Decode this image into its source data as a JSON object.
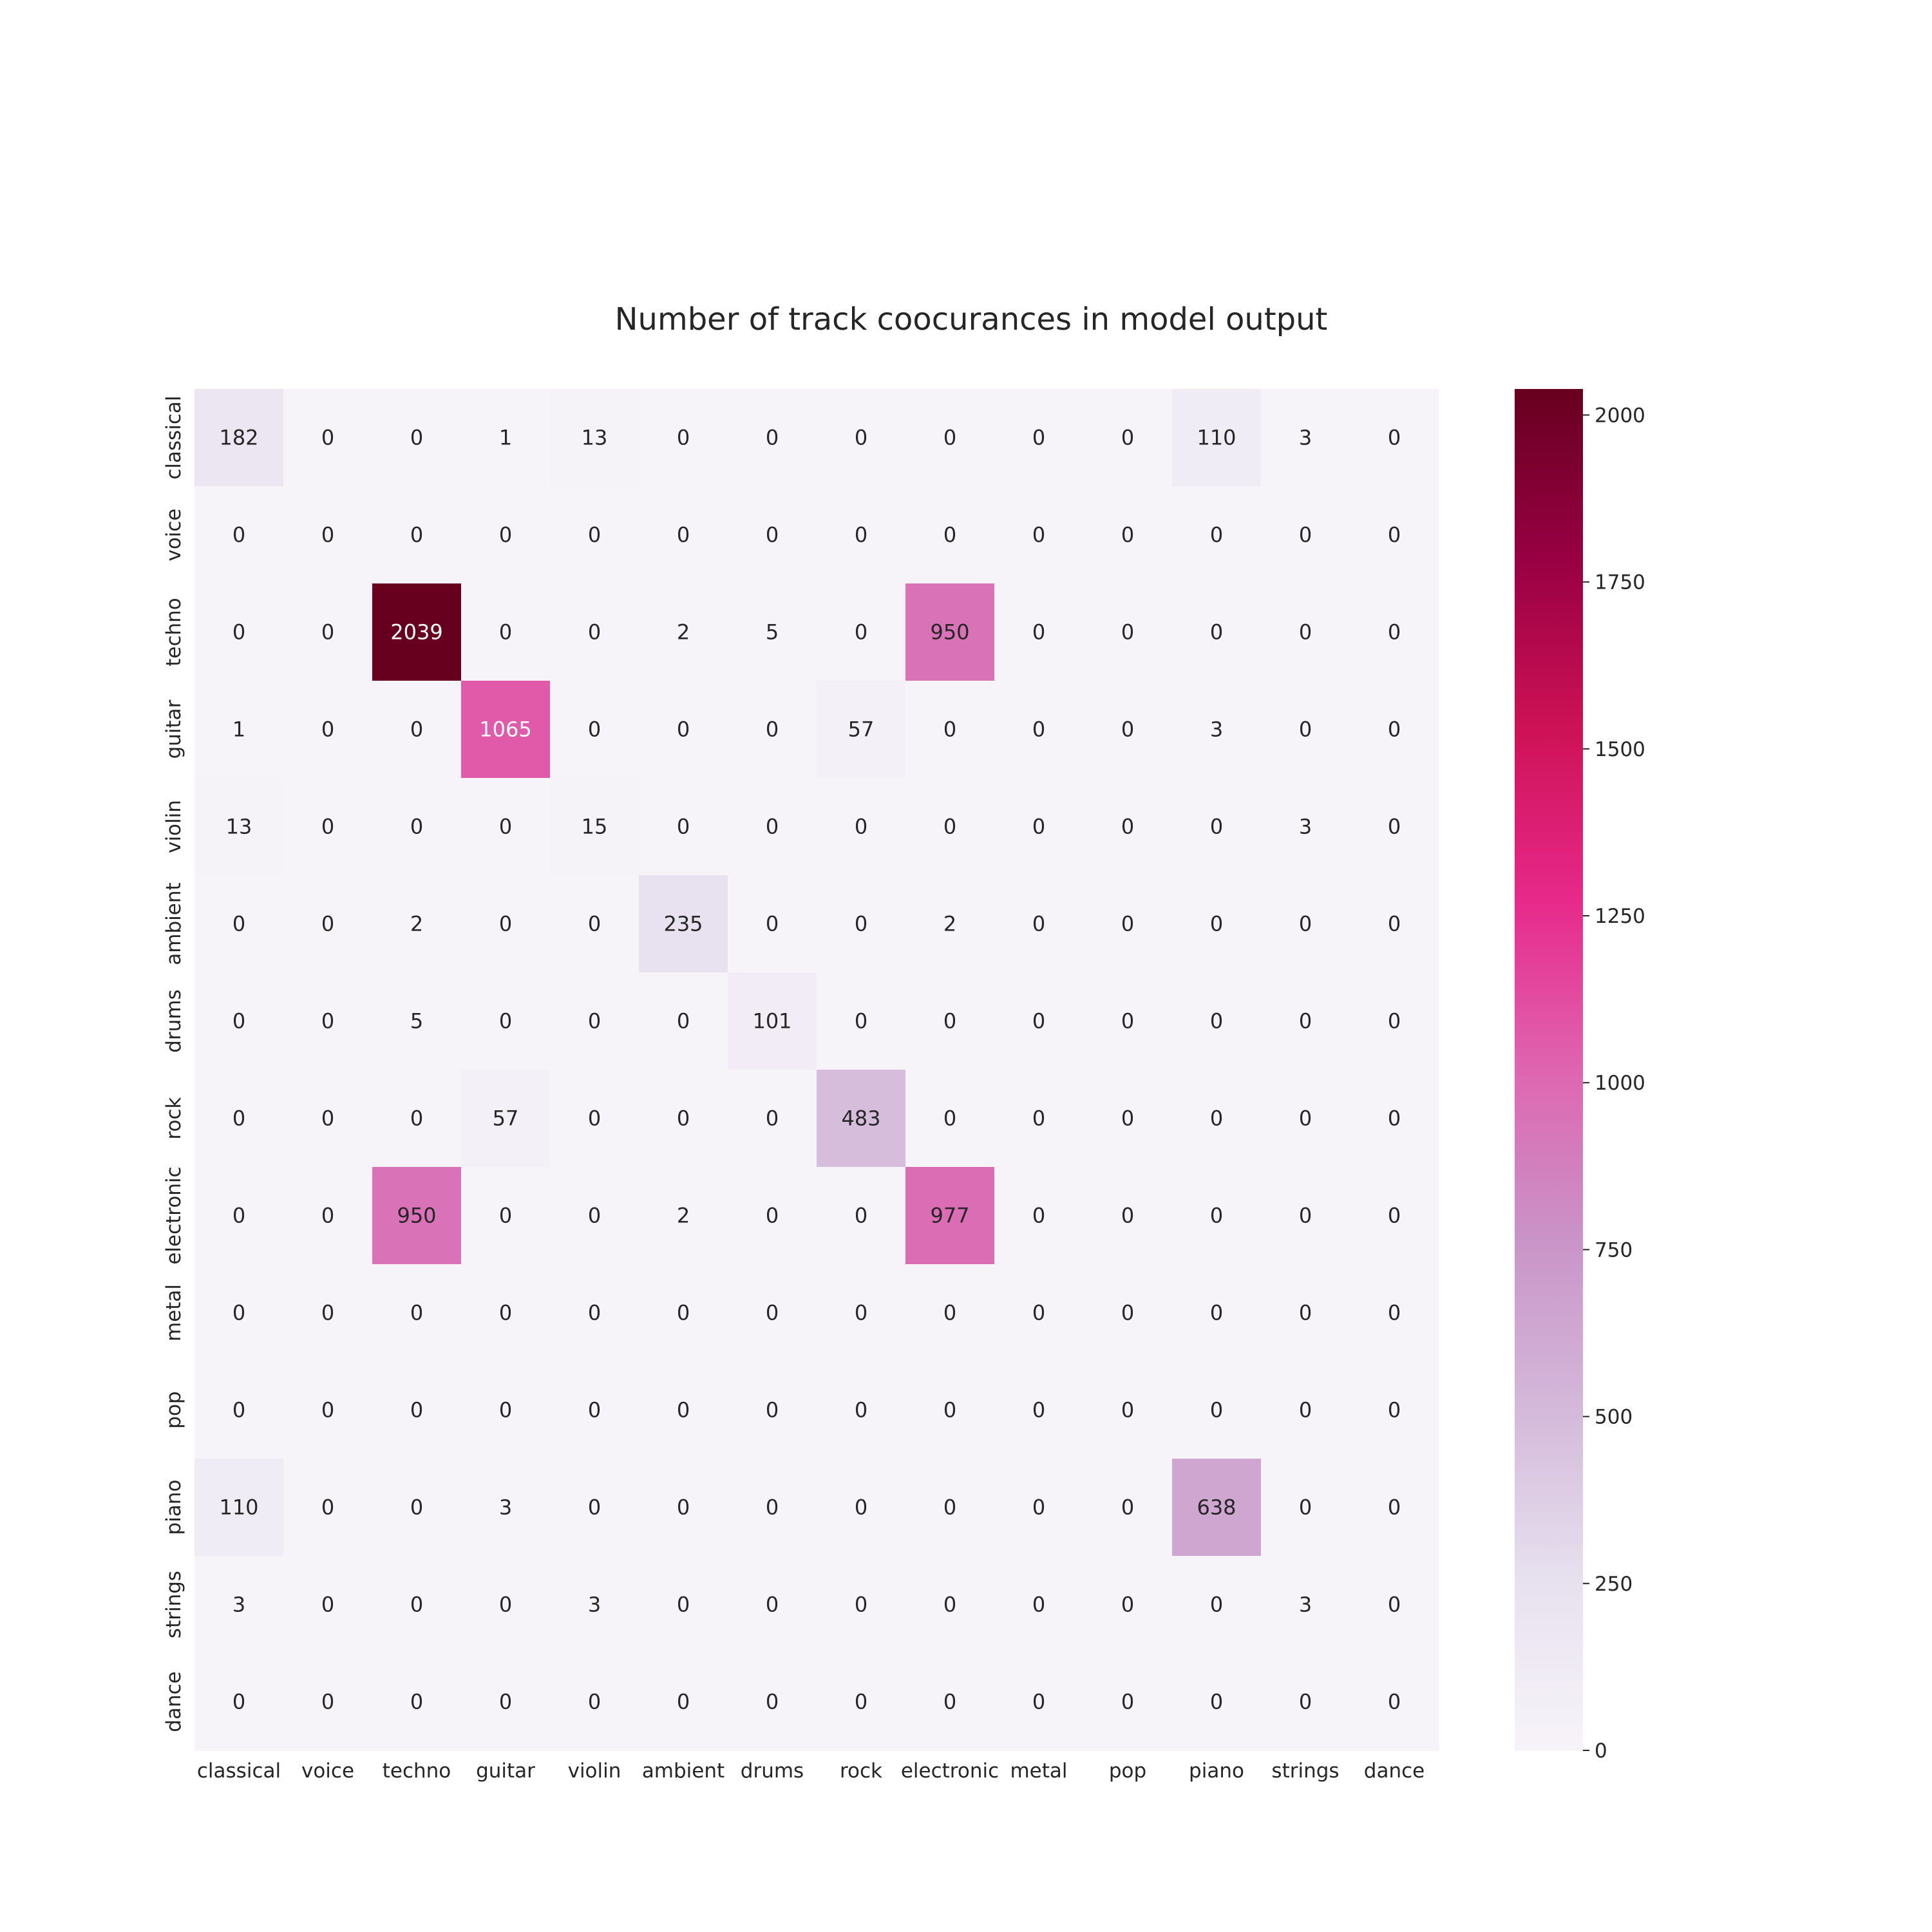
{
  "chart_data": {
    "type": "heatmap",
    "title": "Number of track coocurances in model output",
    "xlabel": "",
    "ylabel": "",
    "x_categories": [
      "classical",
      "voice",
      "techno",
      "guitar",
      "violin",
      "ambient",
      "drums",
      "rock",
      "electronic",
      "metal",
      "pop",
      "piano",
      "strings",
      "dance"
    ],
    "y_categories": [
      "classical",
      "voice",
      "techno",
      "guitar",
      "violin",
      "ambient",
      "drums",
      "rock",
      "electronic",
      "metal",
      "pop",
      "piano",
      "strings",
      "dance"
    ],
    "values": [
      [
        182,
        0,
        0,
        1,
        13,
        0,
        0,
        0,
        0,
        0,
        0,
        110,
        3,
        0
      ],
      [
        0,
        0,
        0,
        0,
        0,
        0,
        0,
        0,
        0,
        0,
        0,
        0,
        0,
        0
      ],
      [
        0,
        0,
        2039,
        0,
        0,
        2,
        5,
        0,
        950,
        0,
        0,
        0,
        0,
        0
      ],
      [
        1,
        0,
        0,
        1065,
        0,
        0,
        0,
        57,
        0,
        0,
        0,
        3,
        0,
        0
      ],
      [
        13,
        0,
        0,
        0,
        15,
        0,
        0,
        0,
        0,
        0,
        0,
        0,
        3,
        0
      ],
      [
        0,
        0,
        2,
        0,
        0,
        235,
        0,
        0,
        2,
        0,
        0,
        0,
        0,
        0
      ],
      [
        0,
        0,
        5,
        0,
        0,
        0,
        101,
        0,
        0,
        0,
        0,
        0,
        0,
        0
      ],
      [
        0,
        0,
        0,
        57,
        0,
        0,
        0,
        483,
        0,
        0,
        0,
        0,
        0,
        0
      ],
      [
        0,
        0,
        950,
        0,
        0,
        2,
        0,
        0,
        977,
        0,
        0,
        0,
        0,
        0
      ],
      [
        0,
        0,
        0,
        0,
        0,
        0,
        0,
        0,
        0,
        0,
        0,
        0,
        0,
        0
      ],
      [
        0,
        0,
        0,
        0,
        0,
        0,
        0,
        0,
        0,
        0,
        0,
        0,
        0,
        0
      ],
      [
        110,
        0,
        0,
        3,
        0,
        0,
        0,
        0,
        0,
        0,
        0,
        638,
        0,
        0
      ],
      [
        3,
        0,
        0,
        0,
        3,
        0,
        0,
        0,
        0,
        0,
        0,
        0,
        3,
        0
      ],
      [
        0,
        0,
        0,
        0,
        0,
        0,
        0,
        0,
        0,
        0,
        0,
        0,
        0,
        0
      ]
    ],
    "colorbar": {
      "range": [
        0,
        2039
      ],
      "ticks": [
        0,
        250,
        500,
        750,
        1000,
        1250,
        1500,
        1750,
        2000
      ],
      "colormap": "PuRd",
      "colors": [
        "#f7f4f9",
        "#e7e1ef",
        "#d4b9da",
        "#c994c7",
        "#df65b0",
        "#e7298a",
        "#ce1256",
        "#980043",
        "#67001f"
      ]
    },
    "annotations": "cell values printed in each cell",
    "grid": false
  }
}
